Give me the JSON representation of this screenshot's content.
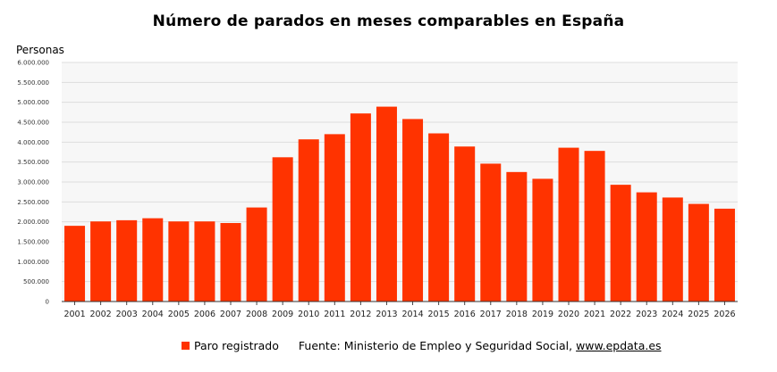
{
  "chart_data": {
    "type": "bar",
    "title": "Número de parados en meses comparables en España",
    "ylabel": "Personas",
    "xlabel": "",
    "ylim": [
      0,
      6000000
    ],
    "y_tick_values": [
      0,
      500000,
      1000000,
      1500000,
      2000000,
      2500000,
      3000000,
      3500000,
      4000000,
      4500000,
      5000000,
      5500000,
      6000000
    ],
    "y_tick_labels": [
      "0",
      "500.000",
      "1.000.000",
      "1.500.000",
      "2.000.000",
      "2.500.000",
      "3.000.000",
      "3.500.000",
      "4.000.000",
      "4.500.000",
      "5.000.000",
      "5.500.000",
      "6.000.000"
    ],
    "categories": [
      "2001",
      "2002",
      "2003",
      "2004",
      "2005",
      "2006",
      "2007",
      "2008",
      "2009",
      "2010",
      "2011",
      "2012",
      "2013",
      "2014",
      "2015",
      "2016",
      "2017",
      "2018",
      "2019",
      "2020",
      "2021",
      "2022",
      "2023",
      "2024",
      "2025",
      "2026"
    ],
    "series": [
      {
        "name": "Paro registrado",
        "color": "#ff3300",
        "values": [
          1900000,
          2010000,
          2040000,
          2090000,
          2010000,
          2010000,
          1970000,
          2360000,
          3620000,
          4070000,
          4200000,
          4720000,
          4890000,
          4580000,
          4220000,
          3890000,
          3460000,
          3250000,
          3080000,
          3860000,
          3780000,
          2930000,
          2740000,
          2610000,
          2450000,
          2330000
        ]
      }
    ],
    "grid": true,
    "legend_position": "bottom",
    "background_color": "#f7f7f7",
    "source_label": "Fuente: Ministerio de Empleo y Seguridad Social,",
    "source_url_text": "www.epdata.es"
  }
}
